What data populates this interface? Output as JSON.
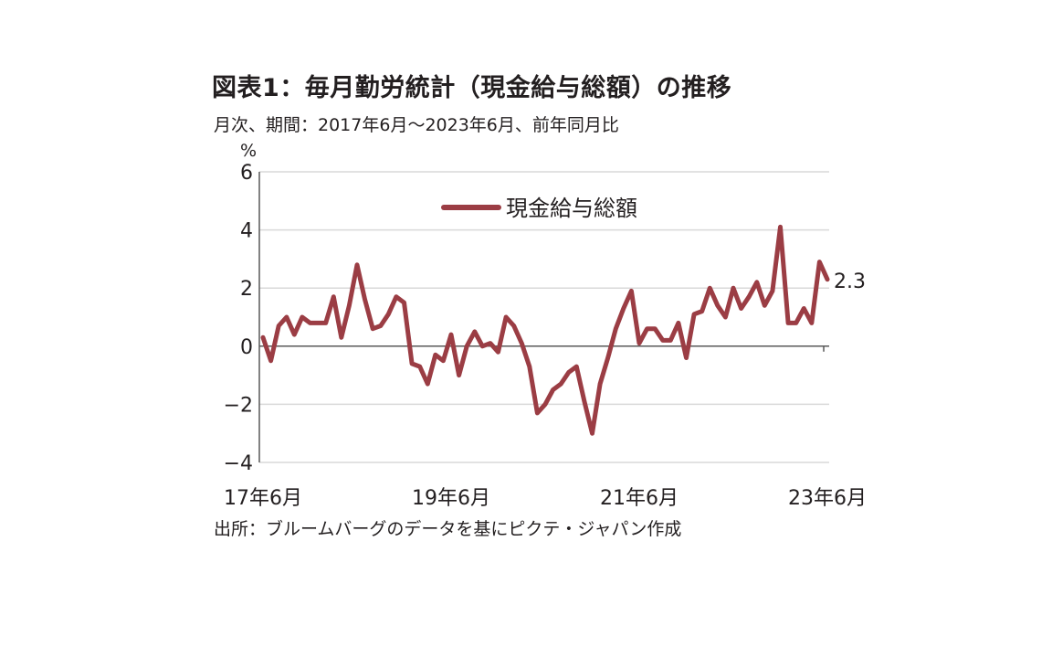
{
  "title": "図表1：毎月勤労統計（現金給与総額）の推移",
  "subtitle": "月次、期間：2017年6月～2023年6月、前年同月比",
  "source": "出所：ブルームバーグのデータを基にピクテ・ジャパン作成",
  "chart_data": {
    "type": "line",
    "ylabel": "%",
    "ylim": [
      -4,
      6
    ],
    "yticks": [
      6,
      4,
      2,
      0,
      -2,
      -4
    ],
    "xticks": [
      "17年6月",
      "19年6月",
      "21年6月",
      "23年6月"
    ],
    "grid": true,
    "legend_position": "top-center",
    "end_label": "2.3",
    "x_start": "2017-06",
    "x_end": "2023-06",
    "series": [
      {
        "name": "現金給与総額",
        "color": "#9b3d44",
        "values": [
          0.3,
          -0.5,
          0.7,
          1.0,
          0.4,
          1.0,
          0.8,
          0.8,
          0.8,
          1.7,
          0.3,
          1.4,
          2.8,
          1.6,
          0.6,
          0.7,
          1.1,
          1.7,
          1.5,
          -0.6,
          -0.7,
          -1.3,
          -0.3,
          -0.5,
          0.4,
          -1.0,
          0.0,
          0.5,
          0.0,
          0.1,
          -0.2,
          1.0,
          0.7,
          0.1,
          -0.7,
          -2.3,
          -2.0,
          -1.5,
          -1.3,
          -0.9,
          -0.7,
          -1.9,
          -3.0,
          -1.3,
          -0.4,
          0.6,
          1.3,
          1.9,
          0.1,
          0.6,
          0.6,
          0.2,
          0.2,
          0.8,
          -0.4,
          1.1,
          1.2,
          2.0,
          1.4,
          1.0,
          2.0,
          1.3,
          1.7,
          2.2,
          1.4,
          1.9,
          4.1,
          0.8,
          0.8,
          1.3,
          0.8,
          2.9,
          2.3
        ]
      }
    ]
  }
}
